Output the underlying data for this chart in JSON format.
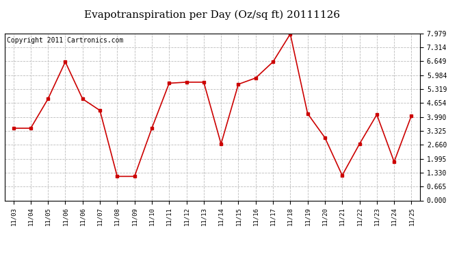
{
  "title": "Evapotranspiration per Day (Oz/sq ft) 20111126",
  "copyright": "Copyright 2011 Cartronics.com",
  "x_labels": [
    "11/03",
    "11/04",
    "11/05",
    "11/06",
    "11/06",
    "11/07",
    "11/08",
    "11/09",
    "11/10",
    "11/11",
    "11/12",
    "11/13",
    "11/14",
    "11/15",
    "11/16",
    "11/17",
    "11/18",
    "11/19",
    "11/20",
    "11/21",
    "11/22",
    "11/23",
    "11/24",
    "11/25"
  ],
  "y_values": [
    3.45,
    3.45,
    4.85,
    6.62,
    4.85,
    4.3,
    1.15,
    1.15,
    3.45,
    5.6,
    5.65,
    5.65,
    2.7,
    5.55,
    5.85,
    6.62,
    7.95,
    4.15,
    3.0,
    1.2,
    2.7,
    4.1,
    1.85,
    4.05
  ],
  "line_color": "#cc0000",
  "marker": "s",
  "marker_size": 3,
  "bg_color": "#ffffff",
  "plot_bg_color": "#ffffff",
  "grid_color": "#bbbbbb",
  "y_ticks": [
    0.0,
    0.665,
    1.33,
    1.995,
    2.66,
    3.325,
    3.99,
    4.654,
    5.319,
    5.984,
    6.649,
    7.314,
    7.979
  ],
  "y_min": 0.0,
  "y_max": 7.979,
  "title_fontsize": 11,
  "copyright_fontsize": 7
}
